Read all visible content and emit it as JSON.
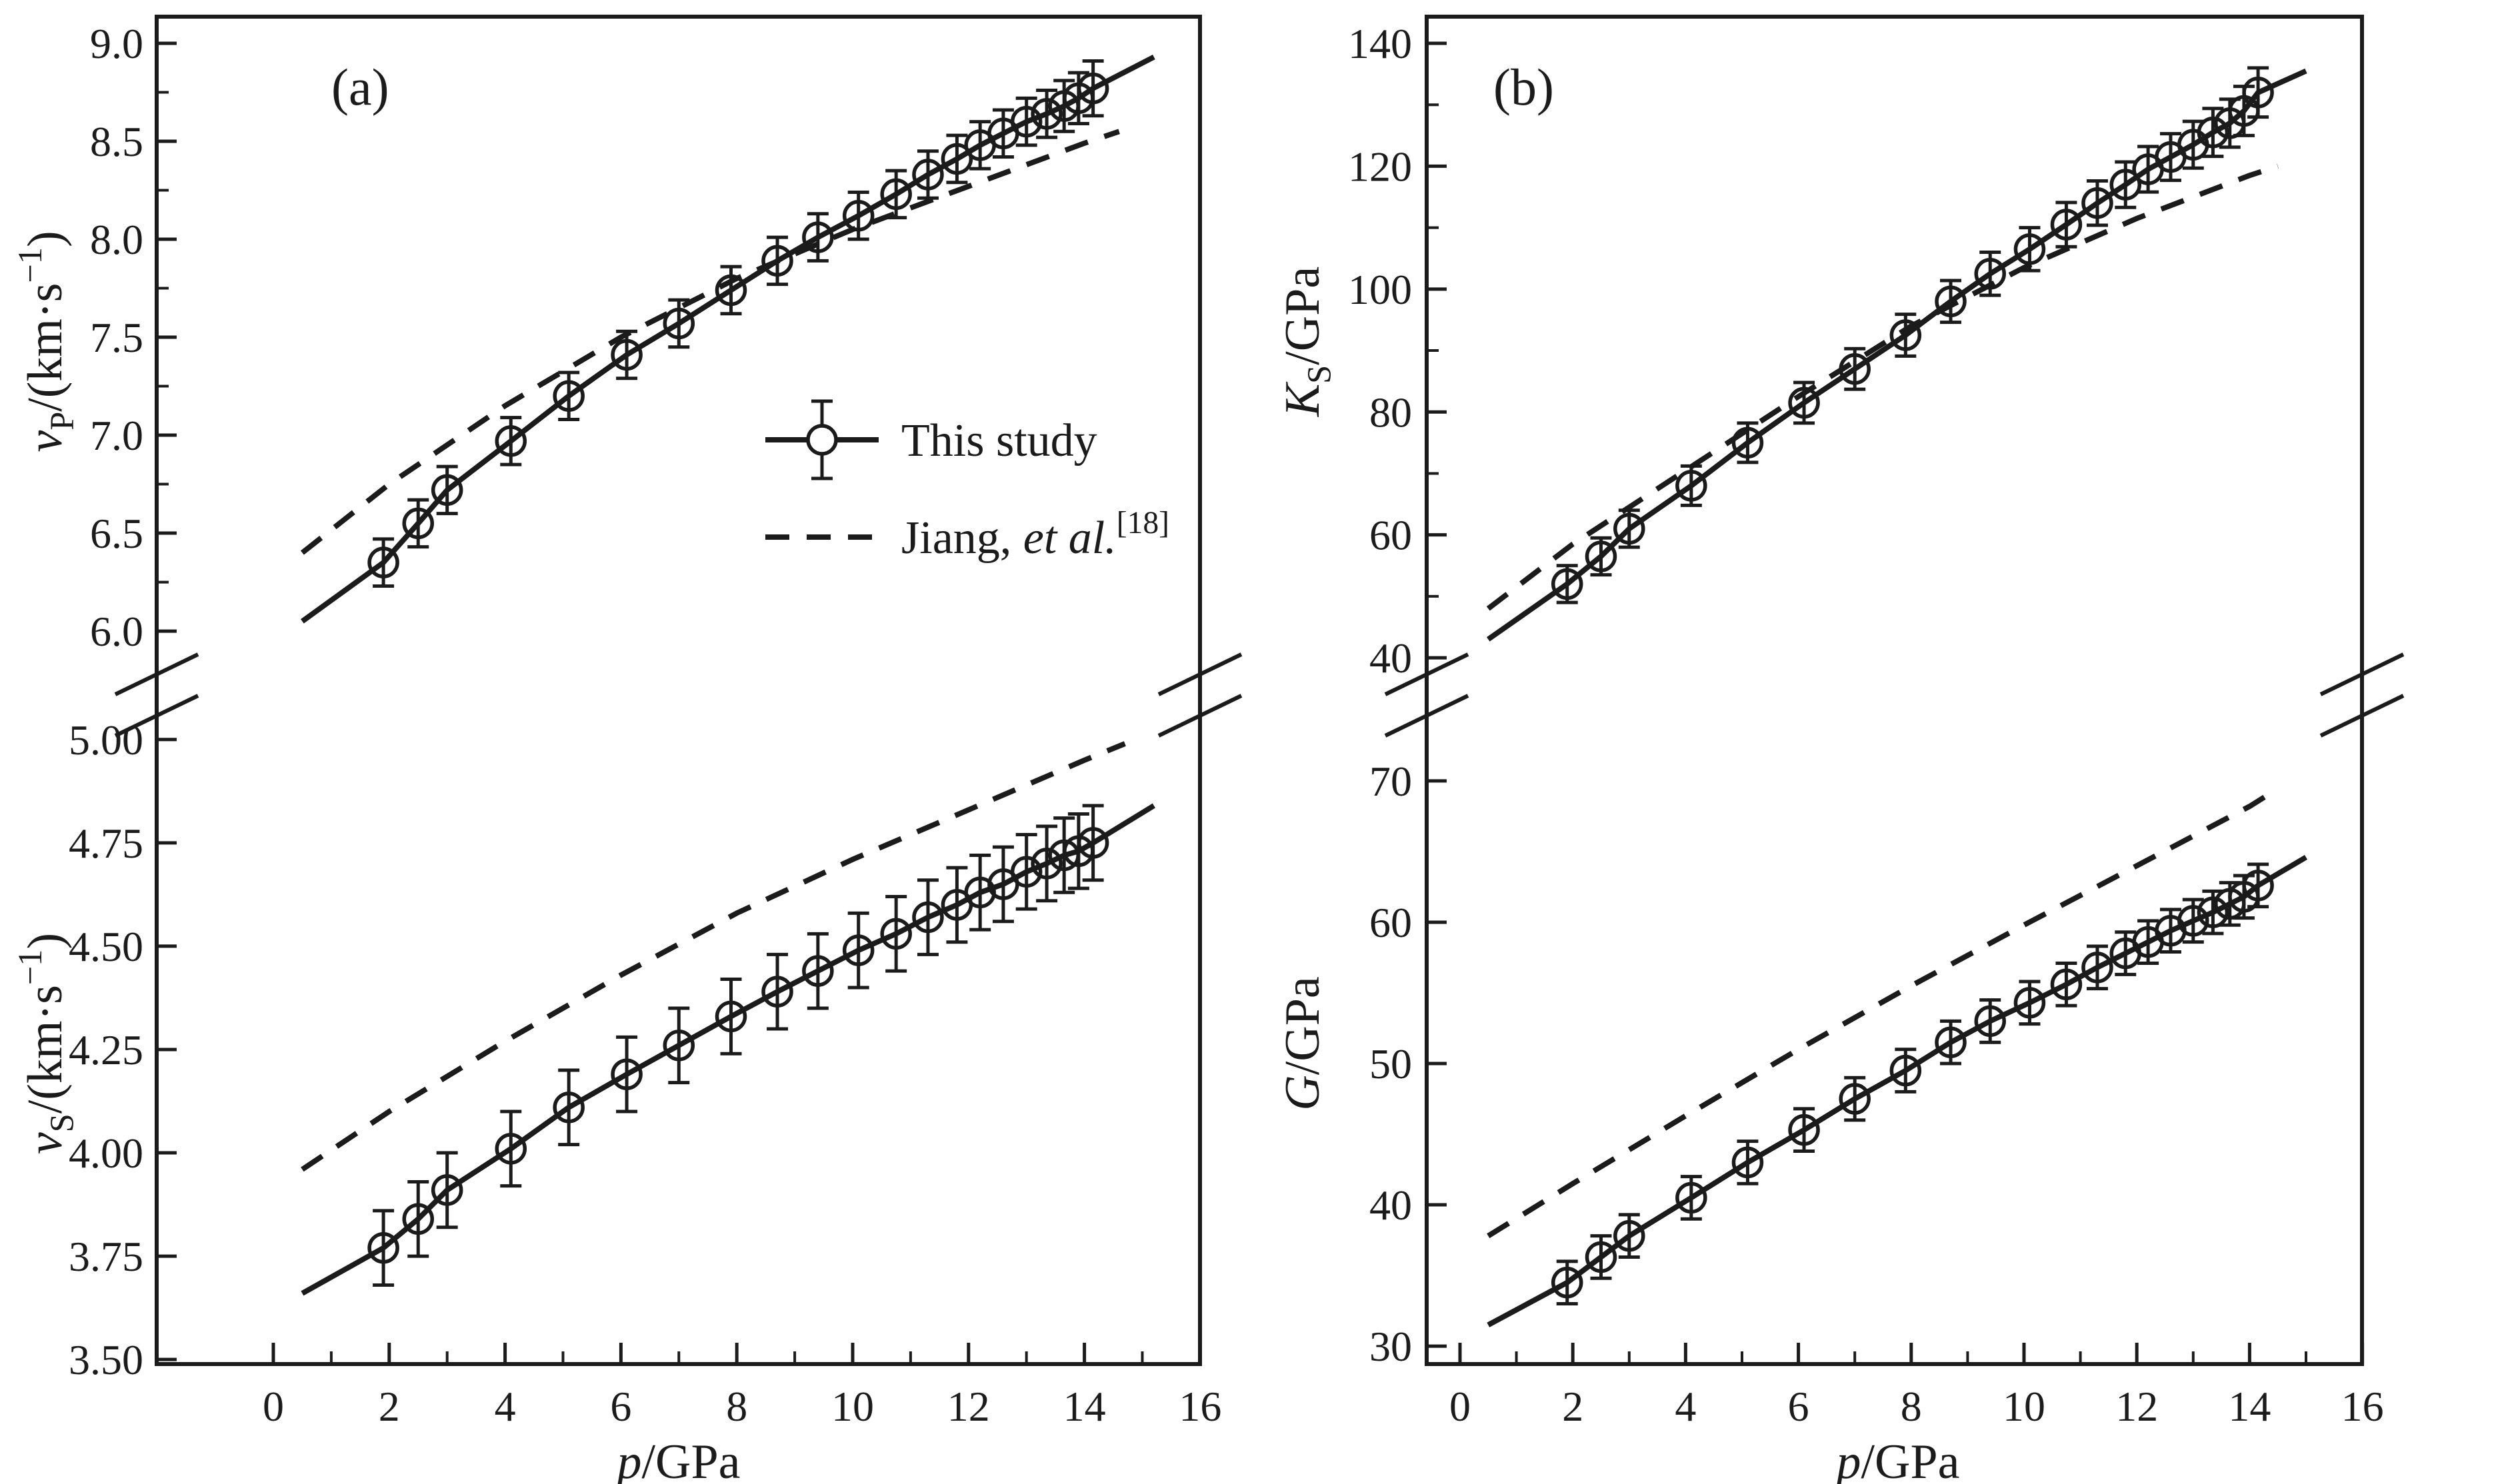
{
  "figure": {
    "background": "#ffffff",
    "ink_color": "#1b1b1b",
    "panel_tags": [
      "(a)",
      "(b)"
    ],
    "xlabel_plain": "p/GPa",
    "xlabel_parts": [
      {
        "t": "p",
        "style": "i"
      },
      {
        "t": "/GPa",
        "style": "n"
      }
    ],
    "xlim": [
      0,
      16
    ],
    "x_tick_labels": [
      "0",
      "2",
      "4",
      "6",
      "8",
      "10",
      "12",
      "14",
      "16"
    ],
    "x_ticks_minor": [
      1,
      3,
      5,
      7,
      9,
      11,
      13,
      15
    ]
  },
  "legend": {
    "items": [
      {
        "marker": "solid-line-circle-errorbar",
        "parts": [
          {
            "t": "This study",
            "style": "n"
          }
        ],
        "label_plain": "This study"
      },
      {
        "marker": "dashed-line",
        "parts": [
          {
            "t": "Jiang, ",
            "style": "n"
          },
          {
            "t": "et al.",
            "style": "i"
          },
          {
            "t": "[18]",
            "style": "sup"
          }
        ],
        "label_plain": "Jiang, et al.[18]"
      }
    ]
  },
  "chart_data": [
    {
      "id": "vp",
      "panel": "a",
      "position": "top",
      "type": "scatter",
      "title": "",
      "xlabel": "p/GPa",
      "ylabel_plain": "vP/(km·s−1)",
      "ylabel_parts": [
        {
          "t": "v",
          "style": "i"
        },
        {
          "t": "P",
          "style": "sub"
        },
        {
          "t": "/(km·s",
          "style": "n"
        },
        {
          "t": "−1",
          "style": "sup"
        },
        {
          "t": ")",
          "style": "n"
        }
      ],
      "ylim": [
        5.82,
        9.136
      ],
      "ytick_labels": [
        "9.0",
        "8.5",
        "8.0",
        "7.5",
        "7.0",
        "6.5",
        "6.0"
      ],
      "yticks_minor": [
        8.75,
        8.25,
        7.75,
        7.25,
        6.75,
        6.25
      ],
      "x": [
        1.9,
        2.5,
        3.0,
        4.1,
        5.1,
        6.1,
        7.0,
        7.9,
        8.7,
        9.4,
        10.1,
        10.75,
        11.3,
        11.8,
        12.2,
        12.6,
        13.0,
        13.35,
        13.65,
        13.9,
        14.15
      ],
      "y": [
        6.35,
        6.55,
        6.72,
        6.97,
        7.2,
        7.41,
        7.57,
        7.74,
        7.89,
        8.01,
        8.12,
        8.23,
        8.33,
        8.41,
        8.48,
        8.54,
        8.6,
        8.64,
        8.68,
        8.72,
        8.77
      ],
      "yerr": [
        0.12,
        0.12,
        0.12,
        0.12,
        0.12,
        0.12,
        0.12,
        0.12,
        0.12,
        0.12,
        0.12,
        0.12,
        0.12,
        0.12,
        0.12,
        0.12,
        0.12,
        0.12,
        0.13,
        0.13,
        0.14
      ],
      "series": [
        {
          "name": "This study",
          "role": "fit_line",
          "style": "solid",
          "points": [
            [
              0.5,
              6.05
            ],
            [
              1.9,
              6.35
            ],
            [
              2.5,
              6.55
            ],
            [
              3.0,
              6.72
            ],
            [
              4.1,
              6.97
            ],
            [
              5.1,
              7.2
            ],
            [
              6.1,
              7.41
            ],
            [
              7.0,
              7.57
            ],
            [
              7.9,
              7.74
            ],
            [
              8.7,
              7.89
            ],
            [
              9.4,
              8.01
            ],
            [
              10.1,
              8.12
            ],
            [
              10.75,
              8.23
            ],
            [
              11.3,
              8.33
            ],
            [
              11.8,
              8.41
            ],
            [
              12.2,
              8.48
            ],
            [
              12.6,
              8.54
            ],
            [
              13.0,
              8.6
            ],
            [
              13.35,
              8.64
            ],
            [
              13.65,
              8.68
            ],
            [
              13.9,
              8.72
            ],
            [
              14.15,
              8.77
            ],
            [
              15.2,
              8.93
            ]
          ]
        },
        {
          "name": "Jiang, et al.[18]",
          "role": "reference_line",
          "style": "dashed",
          "points": [
            [
              0.5,
              6.4
            ],
            [
              2,
              6.75
            ],
            [
              4,
              7.15
            ],
            [
              6,
              7.5
            ],
            [
              8,
              7.8
            ],
            [
              10,
              8.05
            ],
            [
              12,
              8.27
            ],
            [
              14,
              8.49
            ],
            [
              14.6,
              8.55
            ]
          ]
        }
      ]
    },
    {
      "id": "vs",
      "panel": "a",
      "position": "bottom",
      "type": "scatter",
      "title": "",
      "xlabel": "p/GPa",
      "ylabel_plain": "vS/(km·s−1)",
      "ylabel_parts": [
        {
          "t": "v",
          "style": "i"
        },
        {
          "t": "S",
          "style": "sub"
        },
        {
          "t": "/(km·s",
          "style": "n"
        },
        {
          "t": "−1",
          "style": "sup"
        },
        {
          "t": ")",
          "style": "n"
        }
      ],
      "ylim": [
        3.489,
        5.04
      ],
      "ytick_labels": [
        "5.00",
        "4.75",
        "4.50",
        "4.25",
        "4.00",
        "3.75",
        "3.50"
      ],
      "yticks_minor": [],
      "x": [
        1.9,
        2.5,
        3.0,
        4.1,
        5.1,
        6.1,
        7.0,
        7.9,
        8.7,
        9.4,
        10.1,
        10.75,
        11.3,
        11.8,
        12.2,
        12.6,
        13.0,
        13.35,
        13.65,
        13.9,
        14.15
      ],
      "y": [
        3.77,
        3.84,
        3.91,
        4.01,
        4.11,
        4.19,
        4.26,
        4.33,
        4.39,
        4.44,
        4.49,
        4.53,
        4.57,
        4.6,
        4.63,
        4.65,
        4.68,
        4.7,
        4.72,
        4.73,
        4.75
      ],
      "yerr": [
        0.09,
        0.09,
        0.09,
        0.09,
        0.09,
        0.09,
        0.09,
        0.09,
        0.09,
        0.09,
        0.09,
        0.09,
        0.09,
        0.09,
        0.09,
        0.09,
        0.09,
        0.09,
        0.09,
        0.09,
        0.09
      ],
      "series": [
        {
          "name": "This study",
          "role": "fit_line",
          "style": "solid",
          "points": [
            [
              0.5,
              3.66
            ],
            [
              1.9,
              3.77
            ],
            [
              2.5,
              3.84
            ],
            [
              3.0,
              3.91
            ],
            [
              4.1,
              4.01
            ],
            [
              5.1,
              4.11
            ],
            [
              6.1,
              4.19
            ],
            [
              7.0,
              4.26
            ],
            [
              7.9,
              4.33
            ],
            [
              8.7,
              4.39
            ],
            [
              9.4,
              4.44
            ],
            [
              10.1,
              4.49
            ],
            [
              10.75,
              4.53
            ],
            [
              11.3,
              4.57
            ],
            [
              11.8,
              4.6
            ],
            [
              12.2,
              4.63
            ],
            [
              12.6,
              4.65
            ],
            [
              13.0,
              4.68
            ],
            [
              13.35,
              4.7
            ],
            [
              13.65,
              4.72
            ],
            [
              13.9,
              4.73
            ],
            [
              14.15,
              4.75
            ],
            [
              15.2,
              4.84
            ]
          ]
        },
        {
          "name": "Jiang, et al.[18]",
          "role": "reference_line",
          "style": "dashed",
          "points": [
            [
              0.5,
              3.96
            ],
            [
              2,
              4.1
            ],
            [
              4,
              4.27
            ],
            [
              6,
              4.43
            ],
            [
              8,
              4.58
            ],
            [
              10,
              4.71
            ],
            [
              12,
              4.83
            ],
            [
              14,
              4.95
            ],
            [
              14.7,
              4.99
            ]
          ]
        }
      ]
    },
    {
      "id": "ks",
      "panel": "b",
      "position": "top",
      "type": "scatter",
      "title": "",
      "xlabel": "p/GPa",
      "ylabel_plain": "KS/GPa",
      "ylabel_parts": [
        {
          "t": "K",
          "style": "i"
        },
        {
          "t": "S",
          "style": "sub"
        },
        {
          "t": "/GPa",
          "style": "n"
        }
      ],
      "ylim": [
        38.6,
        144.34
      ],
      "ytick_labels": [
        "140",
        "120",
        "100",
        "80",
        "60",
        "40"
      ],
      "yticks_minor": [
        130,
        110,
        90,
        70,
        50
      ],
      "x": [
        1.9,
        2.5,
        3.0,
        4.1,
        5.1,
        6.1,
        7.0,
        7.9,
        8.7,
        9.4,
        10.1,
        10.75,
        11.3,
        11.8,
        12.2,
        12.6,
        13.0,
        13.35,
        13.65,
        13.9,
        14.15
      ],
      "y": [
        52.0,
        56.5,
        61.0,
        68.0,
        75.0,
        81.5,
        87.0,
        92.5,
        98.0,
        102.5,
        106.5,
        110.5,
        114.0,
        117.0,
        119.5,
        121.5,
        123.5,
        125.5,
        127.0,
        129.0,
        132.0
      ],
      "yerr": [
        3.0,
        3.0,
        3.0,
        3.2,
        3.2,
        3.3,
        3.3,
        3.4,
        3.4,
        3.5,
        3.5,
        3.6,
        3.6,
        3.7,
        3.7,
        3.8,
        3.8,
        3.9,
        3.9,
        4.0,
        4.0
      ],
      "series": [
        {
          "name": "This study",
          "role": "fit_line",
          "style": "solid",
          "points": [
            [
              0.5,
              43.0
            ],
            [
              1.9,
              52.0
            ],
            [
              2.5,
              56.5
            ],
            [
              3.0,
              61.0
            ],
            [
              4.1,
              68.0
            ],
            [
              5.1,
              75.0
            ],
            [
              6.1,
              81.5
            ],
            [
              7.0,
              87.0
            ],
            [
              7.9,
              92.5
            ],
            [
              8.7,
              98.0
            ],
            [
              9.4,
              102.5
            ],
            [
              10.1,
              106.5
            ],
            [
              10.75,
              110.5
            ],
            [
              11.3,
              114.0
            ],
            [
              11.8,
              117.0
            ],
            [
              12.2,
              119.5
            ],
            [
              12.6,
              121.5
            ],
            [
              13.0,
              123.5
            ],
            [
              13.35,
              125.5
            ],
            [
              13.65,
              127.0
            ],
            [
              13.9,
              129.0
            ],
            [
              14.15,
              132.0
            ],
            [
              15.0,
              135.5
            ]
          ]
        },
        {
          "name": "Jiang, et al.[18]",
          "role": "reference_line",
          "style": "dashed",
          "points": [
            [
              0.5,
              48.0
            ],
            [
              2,
              58.5
            ],
            [
              4,
              70.5
            ],
            [
              6,
              82.5
            ],
            [
              8,
              94.0
            ],
            [
              10,
              103.5
            ],
            [
              12,
              111.5
            ],
            [
              14,
              118.5
            ],
            [
              14.5,
              120.0
            ]
          ]
        }
      ]
    },
    {
      "id": "g",
      "panel": "b",
      "position": "bottom",
      "type": "scatter",
      "title": "",
      "xlabel": "p/GPa",
      "ylabel_plain": "G/GPa",
      "ylabel_parts": [
        {
          "t": "G",
          "style": "i"
        },
        {
          "t": "/GPa",
          "style": "n"
        }
      ],
      "ylim": [
        28.73,
        74.1
      ],
      "ytick_labels": [
        "70",
        "60",
        "50",
        "40",
        "30"
      ],
      "yticks_minor": [],
      "x": [
        1.9,
        2.5,
        3.0,
        4.1,
        5.1,
        6.1,
        7.0,
        7.9,
        8.7,
        9.4,
        10.1,
        10.75,
        11.3,
        11.8,
        12.2,
        12.6,
        13.0,
        13.35,
        13.65,
        13.9,
        14.15
      ],
      "y": [
        34.5,
        36.3,
        37.8,
        40.5,
        43.0,
        45.3,
        47.5,
        49.5,
        51.5,
        53.0,
        54.3,
        55.6,
        56.8,
        57.8,
        58.6,
        59.4,
        60.1,
        60.7,
        61.3,
        61.8,
        62.6
      ],
      "yerr": [
        1.5,
        1.5,
        1.5,
        1.5,
        1.5,
        1.5,
        1.5,
        1.5,
        1.5,
        1.5,
        1.5,
        1.5,
        1.5,
        1.5,
        1.5,
        1.5,
        1.5,
        1.5,
        1.5,
        1.5,
        1.5
      ],
      "series": [
        {
          "name": "This study",
          "role": "fit_line",
          "style": "solid",
          "points": [
            [
              0.5,
              31.5
            ],
            [
              1.9,
              34.5
            ],
            [
              2.5,
              36.3
            ],
            [
              3.0,
              37.8
            ],
            [
              4.1,
              40.5
            ],
            [
              5.1,
              43.0
            ],
            [
              6.1,
              45.3
            ],
            [
              7.0,
              47.5
            ],
            [
              7.9,
              49.5
            ],
            [
              8.7,
              51.5
            ],
            [
              9.4,
              53.0
            ],
            [
              10.1,
              54.3
            ],
            [
              10.75,
              55.6
            ],
            [
              11.3,
              56.8
            ],
            [
              11.8,
              57.8
            ],
            [
              12.2,
              58.6
            ],
            [
              12.6,
              59.4
            ],
            [
              13.0,
              60.1
            ],
            [
              13.35,
              60.7
            ],
            [
              13.65,
              61.3
            ],
            [
              13.9,
              61.8
            ],
            [
              14.15,
              62.6
            ],
            [
              15.0,
              64.6
            ]
          ]
        },
        {
          "name": "Jiang, et al.[18]",
          "role": "reference_line",
          "style": "dashed",
          "points": [
            [
              0.5,
              37.8
            ],
            [
              2,
              41.5
            ],
            [
              4,
              46.3
            ],
            [
              6,
              51.0
            ],
            [
              8,
              55.5
            ],
            [
              10,
              59.8
            ],
            [
              12,
              64.0
            ],
            [
              14,
              68.2
            ],
            [
              14.4,
              69.2
            ]
          ]
        }
      ]
    }
  ]
}
